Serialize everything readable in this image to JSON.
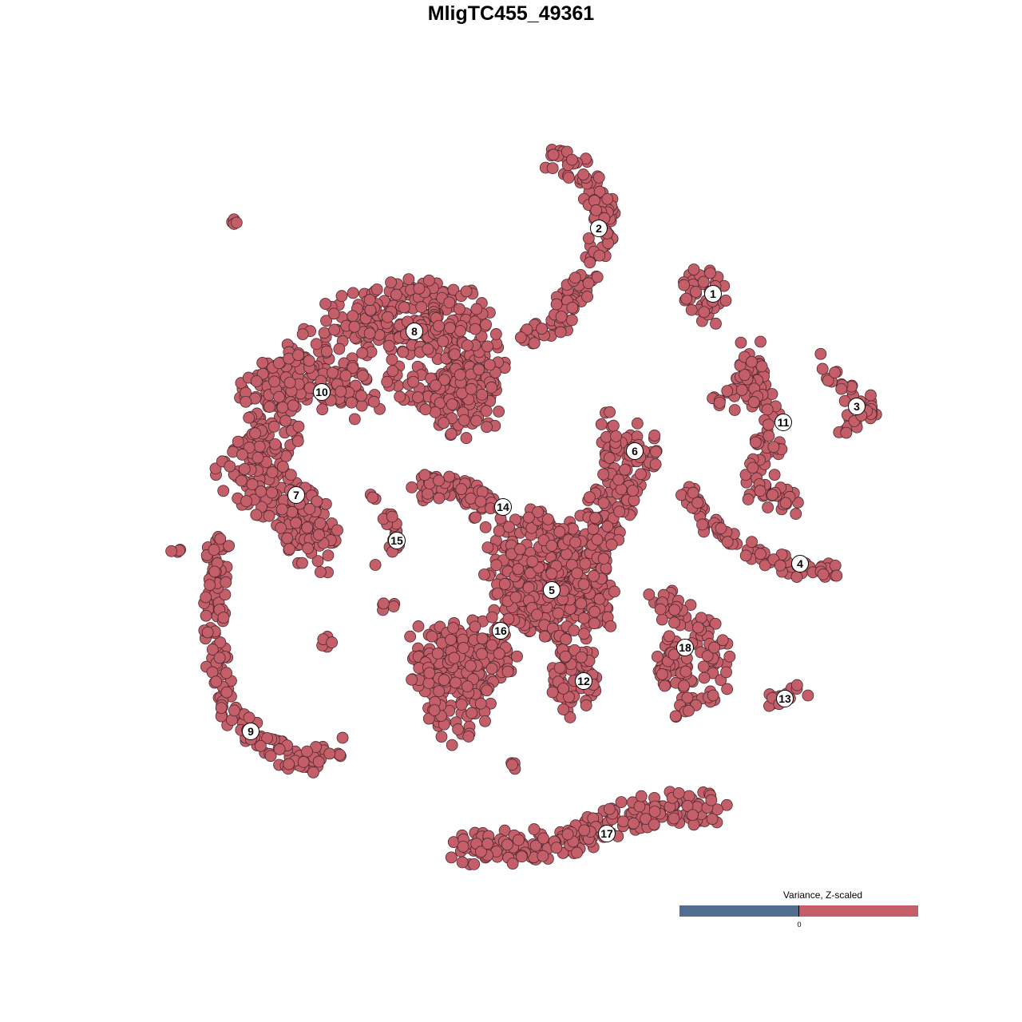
{
  "colors": {
    "point_fill": "#c45e68",
    "point_stroke": "#4d2a30",
    "scale_low": "#506e90",
    "scale_high": "#c45e68",
    "label_fill": "#ffffff"
  },
  "chart_data": {
    "type": "scatter",
    "title": "MligTC455_49361",
    "xlabel": "",
    "ylabel": "",
    "axes_visible": false,
    "grid": false,
    "legend": {
      "title": "Variance, Z-scaled",
      "placement": "bottom-right",
      "type": "diverging colorbar",
      "tick_labels": [
        "0"
      ]
    },
    "note_all_points_color": "high (above 0)",
    "clusters": [
      {
        "label": "1",
        "label_xy": [
          25.3,
          27.2
        ],
        "path": [
          [
            24,
            28
          ],
          [
            25,
            26
          ]
        ],
        "radius": 3,
        "n": 40
      },
      {
        "label": "2",
        "label_xy": [
          11,
          35.4
        ],
        "path": [
          [
            5,
            44
          ],
          [
            10,
            42
          ],
          [
            12,
            36
          ],
          [
            10,
            30
          ],
          [
            7,
            26
          ],
          [
            6,
            23
          ],
          [
            2,
            22.5
          ]
        ],
        "radius": 1.8,
        "n": 140
      },
      {
        "label": "3",
        "label_xy": [
          43.3,
          13.1
        ],
        "path": [
          [
            39,
            19
          ],
          [
            42,
            15
          ],
          [
            46,
            12.5
          ],
          [
            41,
            10.5
          ]
        ],
        "radius": 1.2,
        "n": 40
      },
      {
        "label": "4",
        "label_xy": [
          36.2,
          -6.6
        ],
        "path": [
          [
            22,
            3
          ],
          [
            25,
            -2
          ],
          [
            31,
            -5.5
          ],
          [
            38,
            -7.8
          ],
          [
            42,
            -6.5
          ]
        ],
        "radius": 1.2,
        "n": 80
      },
      {
        "label": "5",
        "label_xy": [
          5.1,
          -9.9
        ],
        "path": [
          [
            3,
            -6
          ],
          [
            7,
            -11
          ]
        ],
        "radius": 7,
        "n": 480
      },
      {
        "label": "6",
        "label_xy": [
          15.5,
          7.5
        ],
        "path": [
          [
            12,
            10
          ],
          [
            16,
            8
          ],
          [
            14,
            5
          ],
          [
            12,
            0
          ],
          [
            10,
            -4
          ]
        ],
        "radius": 3,
        "n": 150
      },
      {
        "label": "7",
        "label_xy": [
          -26.9,
          2
        ],
        "path": [
          [
            -31,
            3
          ],
          [
            -25,
            -2
          ],
          [
            -24.5,
            -6
          ]
        ],
        "radius": 3.5,
        "n": 150
      },
      {
        "label": "8",
        "label_xy": [
          -12.1,
          22.5
        ],
        "path": [
          [
            -22,
            22
          ],
          [
            -14,
            25
          ],
          [
            -7,
            24
          ],
          [
            -5,
            18
          ],
          [
            -5,
            13
          ],
          [
            -12,
            18
          ]
        ],
        "radius": 4.5,
        "n": 450
      },
      {
        "label": "9",
        "label_xy": [
          -32.6,
          -27.6
        ],
        "path": [
          [
            -36.5,
            -4
          ],
          [
            -37,
            -10
          ],
          [
            -37,
            -18
          ],
          [
            -35.5,
            -25
          ],
          [
            -31,
            -29
          ],
          [
            -26,
            -32
          ],
          [
            -22,
            -29.5
          ]
        ],
        "radius": 1.5,
        "n": 170
      },
      {
        "label": "10",
        "label_xy": [
          -23.7,
          14.9
        ],
        "path": [
          [
            -19,
            14
          ],
          [
            -26,
            18
          ],
          [
            -31,
            15
          ],
          [
            -29,
            10
          ],
          [
            -34,
            4
          ]
        ],
        "radius": 3.5,
        "n": 280
      },
      {
        "label": "11",
        "label_xy": [
          34.1,
          11.1
        ],
        "path": [
          [
            25,
            13.5
          ],
          [
            30,
            15
          ],
          [
            30,
            20
          ],
          [
            30.5,
            15
          ],
          [
            32,
            11
          ],
          [
            32,
            6.5
          ],
          [
            30,
            3
          ],
          [
            36,
            1
          ]
        ],
        "radius": 2,
        "n": 130
      },
      {
        "label": "12",
        "label_xy": [
          9.1,
          -21.3
        ],
        "path": [
          [
            8,
            -19
          ],
          [
            8,
            -23
          ]
        ],
        "radius": 3,
        "n": 80
      },
      {
        "label": "13",
        "label_xy": [
          34.3,
          -23.5
        ],
        "path": [
          [
            32,
            -24
          ],
          [
            37,
            -22.2
          ]
        ],
        "radius": 1,
        "n": 14
      },
      {
        "label": "14",
        "label_xy": [
          -1,
          0.5
        ],
        "path": [
          [
            -11,
            2.8
          ],
          [
            -6,
            2.8
          ],
          [
            -3.5,
            1
          ],
          [
            -3,
            -1
          ]
        ],
        "radius": 2,
        "n": 70
      },
      {
        "label": "15",
        "label_xy": [
          -14.3,
          -3.7
        ],
        "path": [
          [
            -18,
            1.5
          ],
          [
            -15,
            -1
          ],
          [
            -14.5,
            -4
          ],
          [
            -16.5,
            -6.8
          ]
        ],
        "radius": 1,
        "n": 22
      },
      {
        "label": "16",
        "label_xy": [
          -1.3,
          -15
        ],
        "path": [
          [
            -4,
            -14
          ],
          [
            -3,
            -19
          ],
          [
            -10,
            -18
          ],
          [
            -6,
            -24
          ],
          [
            -8,
            -27
          ]
        ],
        "radius": 4,
        "n": 250
      },
      {
        "label": "17",
        "label_xy": [
          12,
          -40.4
        ],
        "path": [
          [
            -6,
            -42.5
          ],
          [
            0,
            -42
          ],
          [
            6,
            -42
          ],
          [
            12,
            -39
          ],
          [
            19,
            -37
          ],
          [
            25,
            -37.2
          ]
        ],
        "radius": 2.2,
        "n": 230
      },
      {
        "label": "18",
        "label_xy": [
          21.8,
          -17.1
        ],
        "path": [
          [
            18,
            -11
          ],
          [
            22,
            -14
          ],
          [
            20,
            -20
          ],
          [
            22,
            -24.5
          ],
          [
            26.5,
            -20
          ],
          [
            24,
            -14
          ]
        ],
        "radius": 2.2,
        "n": 130
      },
      {
        "label": "",
        "path": [
          [
            -34.5,
            36.5
          ]
        ],
        "radius": 0.6,
        "n": 4
      },
      {
        "label": "",
        "path": [
          [
            -42,
            -5
          ]
        ],
        "radius": 0.6,
        "n": 4
      },
      {
        "label": "",
        "path": [
          [
            -23,
            -16.5
          ]
        ],
        "radius": 0.8,
        "n": 5
      },
      {
        "label": "",
        "path": [
          [
            -15,
            -12
          ]
        ],
        "radius": 1.2,
        "n": 5
      },
      {
        "label": "",
        "path": [
          [
            0.5,
            -31.5
          ]
        ],
        "radius": 0.8,
        "n": 4
      }
    ],
    "xlim": [
      -64,
      64
    ],
    "ylim": [
      -64,
      64
    ]
  }
}
